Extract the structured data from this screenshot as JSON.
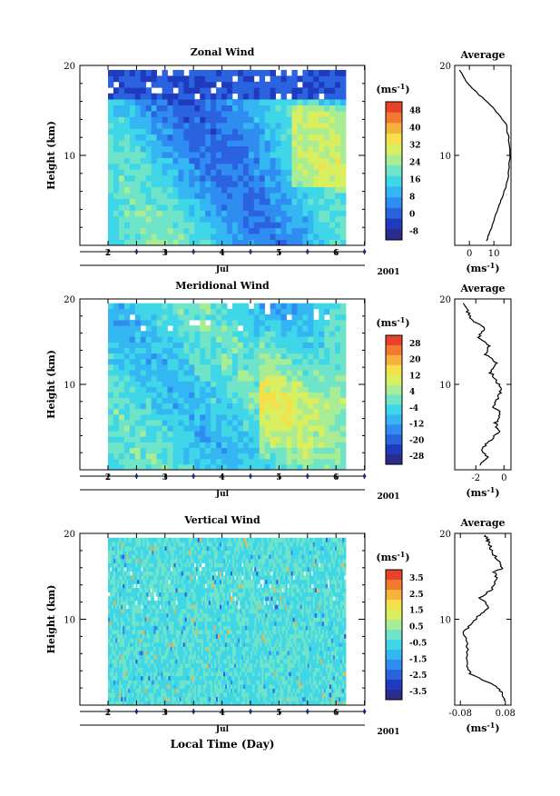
{
  "chart_data": [
    {
      "type": "heatmap",
      "title": "Zonal Wind",
      "ylabel": "Height (km)",
      "yticks": [
        10,
        20
      ],
      "ylim": [
        0,
        20
      ],
      "xticks": [
        "2",
        "3",
        "4",
        "5",
        "6"
      ],
      "xlabel_month": "Jul",
      "year": "2001",
      "colorbar_unit": "(ms",
      "colorbar_unit_sup": "-1",
      "colorbar_unit_close": ")",
      "colorbar_ticks": [
        "48",
        "40",
        "32",
        "24",
        "16",
        "8",
        "0",
        "-8"
      ],
      "average": {
        "title": "Average",
        "xticks": [
          "0",
          "10"
        ],
        "xlim": [
          -6,
          17
        ],
        "unit": "(ms",
        "unit_sup": "-1",
        "unit_close": ")",
        "profile": [
          [
            7,
            0.5
          ],
          [
            9,
            2
          ],
          [
            11,
            3.5
          ],
          [
            13,
            5
          ],
          [
            15,
            6.5
          ],
          [
            16,
            8
          ],
          [
            16.5,
            10
          ],
          [
            16,
            12
          ],
          [
            15,
            13.5
          ],
          [
            12,
            14.5
          ],
          [
            9,
            15.5
          ],
          [
            5,
            16.5
          ],
          [
            1,
            17.5
          ],
          [
            -2,
            18.5
          ],
          [
            -4,
            19.5
          ]
        ]
      }
    },
    {
      "type": "heatmap",
      "title": "Meridional Wind",
      "ylabel": "Height (km)",
      "yticks": [
        10,
        20
      ],
      "ylim": [
        0,
        20
      ],
      "xticks": [
        "2",
        "3",
        "4",
        "5",
        "6"
      ],
      "xlabel_month": "Jul",
      "year": "2001",
      "colorbar_unit": "(ms",
      "colorbar_unit_sup": "-1",
      "colorbar_unit_close": ")",
      "colorbar_ticks": [
        "28",
        "20",
        "12",
        "4",
        "-4",
        "-12",
        "-20",
        "-28"
      ],
      "average": {
        "title": "Average",
        "xticks": [
          "-2",
          "0"
        ],
        "xlim": [
          -3.5,
          0.5
        ],
        "unit": "(ms",
        "unit_sup": "-1",
        "unit_close": ")",
        "profile": [
          [
            -1.8,
            0.5
          ],
          [
            -1.2,
            1.5
          ],
          [
            -1.6,
            2.5
          ],
          [
            -0.9,
            3.5
          ],
          [
            -0.4,
            4.5
          ],
          [
            -0.6,
            5.5
          ],
          [
            -0.2,
            6.5
          ],
          [
            -0.8,
            7.5
          ],
          [
            -0.4,
            8.5
          ],
          [
            -0.1,
            9.5
          ],
          [
            -0.6,
            10.5
          ],
          [
            -1.0,
            11.5
          ],
          [
            -0.6,
            12.5
          ],
          [
            -1.3,
            13.5
          ],
          [
            -1.0,
            14.5
          ],
          [
            -1.8,
            15.5
          ],
          [
            -1.4,
            16.5
          ],
          [
            -2.2,
            17.5
          ],
          [
            -2.6,
            18.5
          ],
          [
            -2.9,
            19.5
          ]
        ]
      }
    },
    {
      "type": "heatmap",
      "title": "Vertical Wind",
      "ylabel": "Height (km)",
      "yticks": [
        10,
        20
      ],
      "ylim": [
        0,
        20
      ],
      "xticks": [
        "2",
        "3",
        "4",
        "5",
        "6"
      ],
      "xlabel_month": "Jul",
      "year": "2001",
      "xlabel": "Local Time (Day)",
      "colorbar_unit": "(ms",
      "colorbar_unit_sup": "-1",
      "colorbar_unit_close": ")",
      "colorbar_ticks": [
        "3.5",
        "2.5",
        "1.5",
        "0.5",
        "-0.5",
        "-1.5",
        "-2.5",
        "-3.5"
      ],
      "average": {
        "title": "Average",
        "xticks": [
          "-0.08",
          "0.08"
        ],
        "xlim": [
          -0.1,
          0.1
        ],
        "unit": "(ms",
        "unit_sup": "-1",
        "unit_close": ")",
        "profile": [
          [
            0.08,
            0.5
          ],
          [
            0.07,
            1.5
          ],
          [
            0.03,
            2.5
          ],
          [
            -0.04,
            3.5
          ],
          [
            -0.06,
            4.5
          ],
          [
            -0.05,
            6.5
          ],
          [
            -0.07,
            8.5
          ],
          [
            -0.04,
            9.5
          ],
          [
            -0.01,
            10.5
          ],
          [
            0.02,
            11.5
          ],
          [
            -0.01,
            12.5
          ],
          [
            0.03,
            13.5
          ],
          [
            0.05,
            14.5
          ],
          [
            0.04,
            15.5
          ],
          [
            0.07,
            16
          ],
          [
            0.05,
            17
          ],
          [
            0.03,
            18
          ],
          [
            0.02,
            19
          ],
          [
            0.01,
            19.8
          ]
        ]
      }
    }
  ]
}
